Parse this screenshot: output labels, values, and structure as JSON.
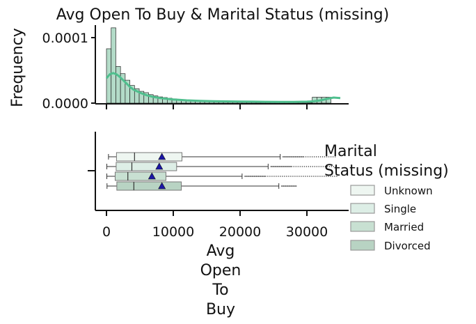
{
  "chart_data": [
    {
      "type": "histogram",
      "title": "Avg Open To Buy & Marital Status (missing)",
      "ylabel": "Frequency",
      "xlabel": "",
      "xlim": [
        -1500,
        36500
      ],
      "ylim": [
        0,
        0.000118
      ],
      "yticks": [
        "0.0000",
        "0.0001"
      ],
      "ytick_values": [
        0,
        0.0001
      ],
      "xtick_values": [
        0,
        10000,
        20000,
        30000
      ],
      "bin_width": 700,
      "bin_start": 0,
      "density": [
        8.3e-05,
        0.000115,
        5.6e-05,
        4.5e-05,
        3.5e-05,
        2.7e-05,
        2.2e-05,
        1.8e-05,
        1.6e-05,
        1.3e-05,
        1.1e-05,
        9.5e-06,
        8.5e-06,
        7.5e-06,
        6.6e-06,
        5.8e-06,
        5.1e-06,
        4.6e-06,
        4.2e-06,
        3.8e-06,
        3.5e-06,
        3.2e-06,
        3e-06,
        2.8e-06,
        2.6e-06,
        2.4e-06,
        2.2e-06,
        2e-06,
        1.9e-06,
        1.8e-06,
        1.7e-06,
        1.6e-06,
        1.5e-06,
        1.4e-06,
        1.3e-06,
        1.2e-06,
        1.1e-06,
        1.1e-06,
        1e-06,
        1e-06,
        1e-06,
        1e-06,
        1e-06,
        1e-06,
        9e-06,
        9e-06,
        9e-06,
        9e-06
      ],
      "kde": {
        "x": [
          0,
          500,
          1000,
          1500,
          2000,
          2500,
          3000,
          3500,
          4000,
          5000,
          6000,
          7000,
          8000,
          9000,
          10000,
          12000,
          14000,
          16000,
          18000,
          20000,
          22000,
          24000,
          26000,
          28000,
          30000,
          31000,
          32000,
          33000,
          34000,
          35000
        ],
        "y": [
          3.8e-05,
          4.4e-05,
          4.6e-05,
          4.4e-05,
          4e-05,
          3.5e-05,
          3e-05,
          2.5e-05,
          2.1e-05,
          1.6e-05,
          1.2e-05,
          9.5e-06,
          7.8e-06,
          6.6e-06,
          5.6e-06,
          4.3e-06,
          3.5e-06,
          3e-06,
          2.7e-06,
          2.4e-06,
          2.2e-06,
          2e-06,
          1.9e-06,
          1.9e-06,
          2.2e-06,
          2.8e-06,
          4.2e-06,
          6.5e-06,
          8.5e-06,
          7.8e-06
        ]
      },
      "bar_color": "#b3dbc8",
      "kde_color": "#4fbf8e"
    },
    {
      "type": "boxplot",
      "xlabel": "Avg\nOpen\nTo\nBuy",
      "xlabel_lines": [
        "Avg",
        "Open",
        "To",
        "Buy"
      ],
      "xlim": [
        -1500,
        36500
      ],
      "xticks": [
        "0",
        "10000",
        "20000",
        "30000"
      ],
      "xtick_values": [
        0,
        10000,
        20000,
        30000
      ],
      "legend_title_lines": [
        "Marital",
        "Status (missing)"
      ],
      "legend_placement": "right",
      "series": [
        {
          "name": "Unknown",
          "color": "#eef6f1",
          "whisker_low": 300,
          "q1": 1500,
          "median": 4200,
          "q3": 11300,
          "whisker_high": 26000,
          "mean": 8300,
          "outlier_max": 34500
        },
        {
          "name": "Single",
          "color": "#ddeee6",
          "whisker_low": 50,
          "q1": 1450,
          "median": 3800,
          "q3": 10500,
          "whisker_high": 24200,
          "mean": 7900,
          "outlier_max": 34500
        },
        {
          "name": "Married",
          "color": "#c8e0d2",
          "whisker_low": 50,
          "q1": 1300,
          "median": 3200,
          "q3": 8900,
          "whisker_high": 20300,
          "mean": 6800,
          "outlier_max": 34500
        },
        {
          "name": "Divorced",
          "color": "#b8d3c3",
          "whisker_low": 80,
          "q1": 1550,
          "median": 4100,
          "q3": 11200,
          "whisker_high": 25800,
          "mean": 8300,
          "outlier_max": 28500
        }
      ]
    }
  ]
}
